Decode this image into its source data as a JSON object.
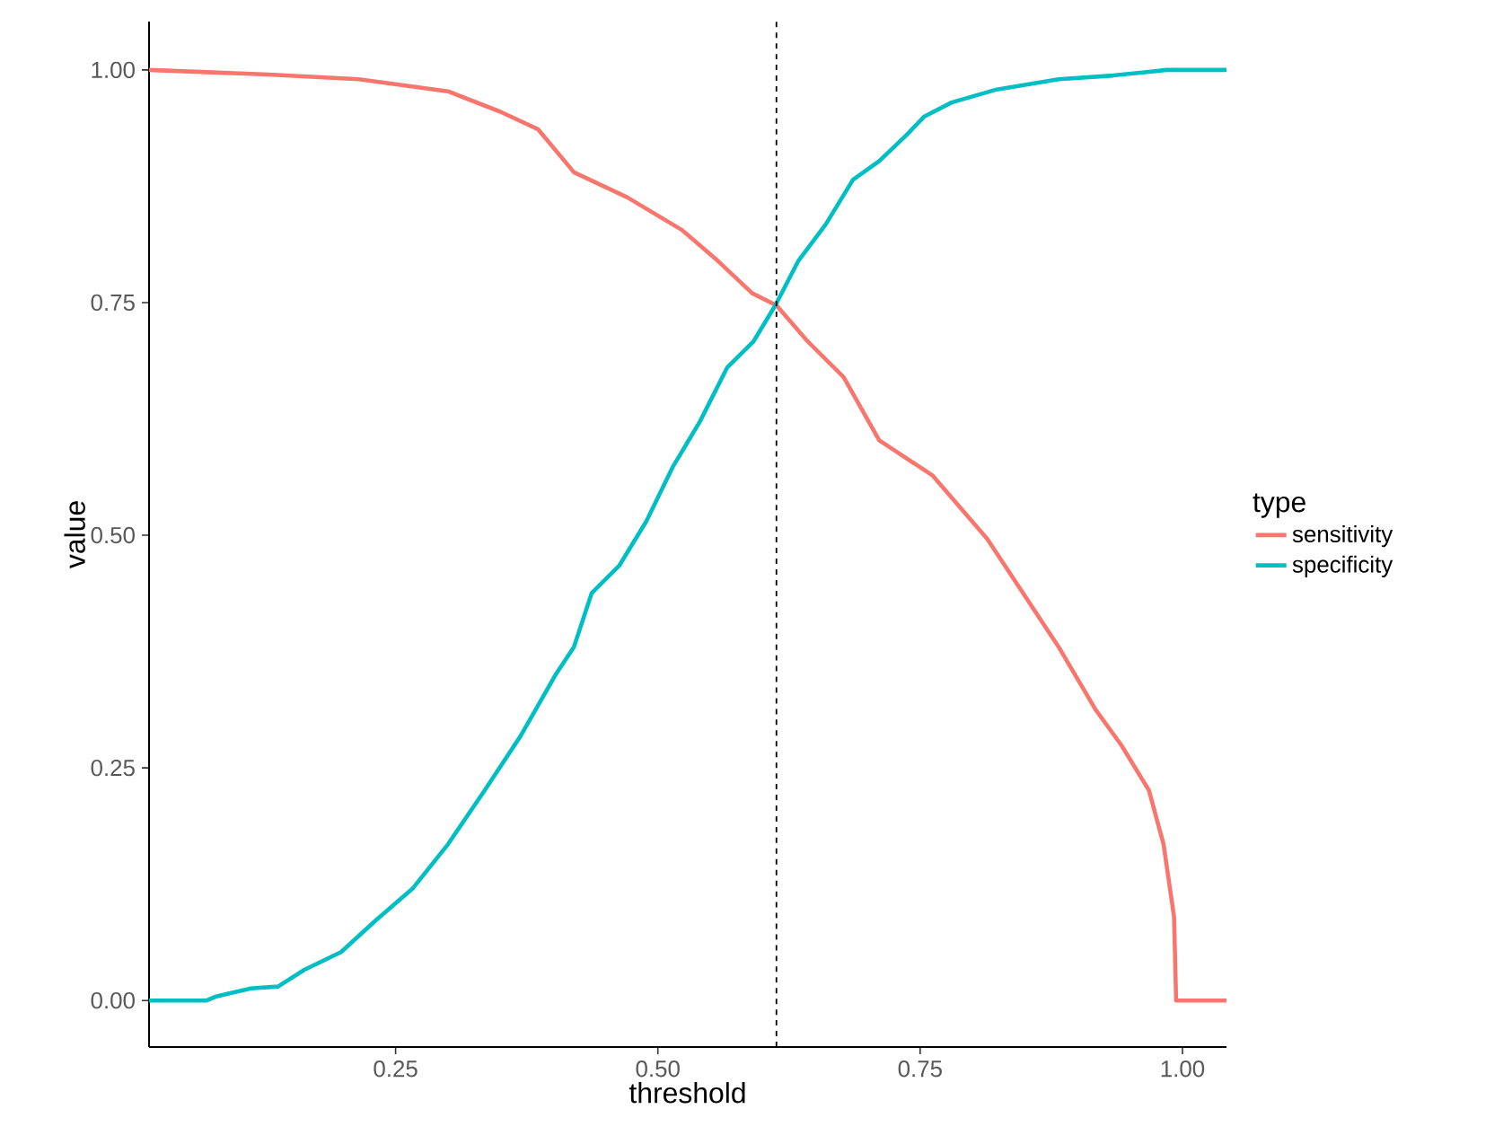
{
  "chart_data": {
    "type": "line",
    "xlabel": "threshold",
    "ylabel": "value",
    "legend_title": "type",
    "legend": "right",
    "grid": false,
    "line_style": "solid",
    "marker": "none",
    "xlim": [
      0.015,
      1.042
    ],
    "ylim": [
      -0.05,
      1.052
    ],
    "xticks": [
      {
        "value": 0.25,
        "label": "0.25"
      },
      {
        "value": 0.5,
        "label": "0.50"
      },
      {
        "value": 0.75,
        "label": "0.75"
      },
      {
        "value": 1.0,
        "label": "1.00"
      }
    ],
    "yticks": [
      {
        "value": 0.0,
        "label": "0.00"
      },
      {
        "value": 0.25,
        "label": "0.25"
      },
      {
        "value": 0.5,
        "label": "0.50"
      },
      {
        "value": 0.75,
        "label": "0.75"
      },
      {
        "value": 1.0,
        "label": "1.00"
      }
    ],
    "ref_lines": [
      {
        "axis": "x",
        "value": 0.613,
        "line_style": "dashed",
        "color": "#000000"
      }
    ],
    "series": [
      {
        "name": "sensitivity",
        "color": "#f8766d",
        "x": [
          0.015,
          0.129,
          0.215,
          0.3,
          0.35,
          0.386,
          0.42,
          0.471,
          0.523,
          0.557,
          0.59,
          0.613,
          0.643,
          0.677,
          0.711,
          0.762,
          0.814,
          0.848,
          0.882,
          0.917,
          0.942,
          0.968,
          0.982,
          0.992,
          0.994,
          1.042
        ],
        "values": [
          1.0,
          0.995,
          0.99,
          0.977,
          0.955,
          0.936,
          0.89,
          0.863,
          0.828,
          0.795,
          0.76,
          0.747,
          0.708,
          0.67,
          0.602,
          0.564,
          0.496,
          0.438,
          0.38,
          0.313,
          0.274,
          0.226,
          0.168,
          0.09,
          0.0,
          0.0
        ]
      },
      {
        "name": "specificity",
        "color": "#00bfc4",
        "x": [
          0.015,
          0.07,
          0.078,
          0.112,
          0.138,
          0.163,
          0.198,
          0.232,
          0.266,
          0.3,
          0.335,
          0.369,
          0.403,
          0.42,
          0.437,
          0.463,
          0.489,
          0.514,
          0.54,
          0.566,
          0.591,
          0.612,
          0.634,
          0.66,
          0.686,
          0.711,
          0.737,
          0.754,
          0.78,
          0.823,
          0.882,
          0.934,
          0.985,
          1.042
        ],
        "values": [
          0.0,
          0.0,
          0.004,
          0.013,
          0.015,
          0.033,
          0.052,
          0.087,
          0.12,
          0.168,
          0.226,
          0.284,
          0.351,
          0.38,
          0.438,
          0.467,
          0.515,
          0.573,
          0.622,
          0.68,
          0.708,
          0.747,
          0.795,
          0.834,
          0.882,
          0.902,
          0.93,
          0.95,
          0.965,
          0.979,
          0.99,
          0.994,
          1.0,
          1.0
        ]
      }
    ]
  }
}
